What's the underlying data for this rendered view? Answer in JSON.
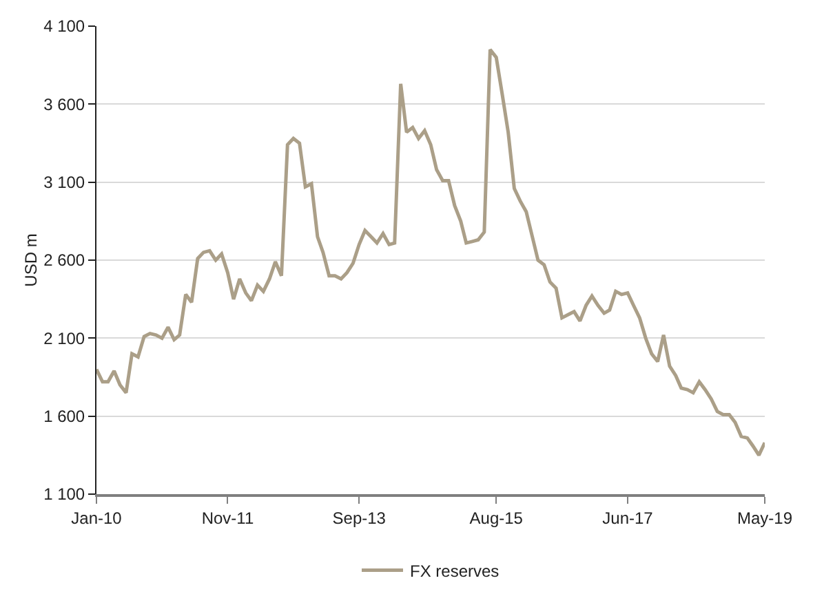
{
  "chart_data": {
    "type": "line",
    "ylabel": "USD m",
    "line_style": "solid",
    "marker": "none",
    "grid": "y",
    "legend": "bottom",
    "x": [
      "2010-01",
      "2010-02",
      "2010-03",
      "2010-04",
      "2010-05",
      "2010-06",
      "2010-07",
      "2010-08",
      "2010-09",
      "2010-10",
      "2010-11",
      "2010-12",
      "2011-01",
      "2011-02",
      "2011-03",
      "2011-04",
      "2011-05",
      "2011-06",
      "2011-07",
      "2011-08",
      "2011-09",
      "2011-10",
      "2011-11",
      "2011-12",
      "2012-01",
      "2012-02",
      "2012-03",
      "2012-04",
      "2012-05",
      "2012-06",
      "2012-07",
      "2012-08",
      "2012-09",
      "2012-10",
      "2012-11",
      "2012-12",
      "2013-01",
      "2013-02",
      "2013-03",
      "2013-04",
      "2013-05",
      "2013-06",
      "2013-07",
      "2013-08",
      "2013-09",
      "2013-10",
      "2013-11",
      "2013-12",
      "2014-01",
      "2014-02",
      "2014-03",
      "2014-04",
      "2014-05",
      "2014-06",
      "2014-07",
      "2014-08",
      "2014-09",
      "2014-10",
      "2014-11",
      "2014-12",
      "2015-01",
      "2015-02",
      "2015-03",
      "2015-04",
      "2015-05",
      "2015-06",
      "2015-07",
      "2015-08",
      "2015-09",
      "2015-10",
      "2015-11",
      "2015-12",
      "2016-01",
      "2016-02",
      "2016-03",
      "2016-04",
      "2016-05",
      "2016-06",
      "2016-07",
      "2016-08",
      "2016-09",
      "2016-10",
      "2016-11",
      "2016-12",
      "2017-01",
      "2017-02",
      "2017-03",
      "2017-04",
      "2017-05",
      "2017-06",
      "2017-07",
      "2017-08",
      "2017-09",
      "2017-10",
      "2017-11",
      "2017-12",
      "2018-01",
      "2018-02",
      "2018-03",
      "2018-04",
      "2018-05",
      "2018-06",
      "2018-07",
      "2018-08",
      "2018-09",
      "2018-10",
      "2018-11",
      "2018-12",
      "2019-01",
      "2019-02",
      "2019-03",
      "2019-04",
      "2019-05"
    ],
    "series": [
      {
        "name": "FX reserves",
        "color": "#ab9f88",
        "values": [
          1900,
          1820,
          1820,
          1890,
          1800,
          1750,
          2000,
          1980,
          2110,
          2130,
          2120,
          2100,
          2170,
          2090,
          2120,
          2380,
          2330,
          2610,
          2650,
          2660,
          2600,
          2640,
          2520,
          2350,
          2480,
          2390,
          2340,
          2440,
          2400,
          2480,
          2590,
          2500,
          3340,
          3380,
          3350,
          3070,
          3090,
          2750,
          2650,
          2500,
          2500,
          2480,
          2520,
          2580,
          2700,
          2790,
          2750,
          2710,
          2770,
          2700,
          2710,
          3730,
          3420,
          3450,
          3380,
          3430,
          3340,
          3180,
          3110,
          3110,
          2950,
          2850,
          2710,
          2720,
          2730,
          2780,
          3950,
          3900,
          3660,
          3420,
          3060,
          2980,
          2910,
          2750,
          2600,
          2570,
          2460,
          2420,
          2230,
          2250,
          2270,
          2210,
          2310,
          2370,
          2310,
          2260,
          2280,
          2400,
          2380,
          2390,
          2310,
          2230,
          2100,
          2000,
          1950,
          2120,
          1920,
          1860,
          1780,
          1770,
          1750,
          1820,
          1770,
          1710,
          1630,
          1610,
          1610,
          1560,
          1470,
          1460,
          1410,
          1350,
          1430
        ]
      }
    ],
    "xlim": [
      "2010-01",
      "2019-05"
    ],
    "xticks": [
      {
        "value": "2010-01",
        "label": "Jan-10"
      },
      {
        "value": "2011-11",
        "label": "Nov-11"
      },
      {
        "value": "2013-09",
        "label": "Sep-13"
      },
      {
        "value": "2015-08",
        "label": "Aug-15"
      },
      {
        "value": "2017-06",
        "label": "Jun-17"
      },
      {
        "value": "2019-05",
        "label": "May-19"
      }
    ],
    "ylim": [
      1100,
      4100
    ],
    "yticks": [
      {
        "value": 1100,
        "label": "1 100"
      },
      {
        "value": 1600,
        "label": "1 600"
      },
      {
        "value": 2100,
        "label": "2 100"
      },
      {
        "value": 2600,
        "label": "2 600"
      },
      {
        "value": 3100,
        "label": "3 100"
      },
      {
        "value": 3600,
        "label": "3 600"
      },
      {
        "value": 4100,
        "label": "4 100"
      }
    ]
  }
}
